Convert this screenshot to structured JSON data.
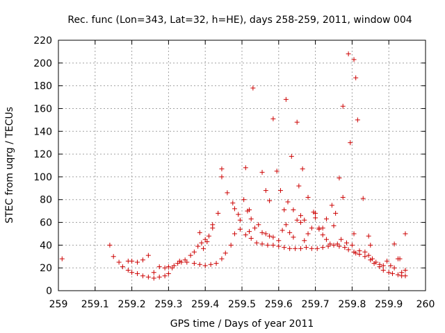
{
  "chart_data": {
    "type": "scatter",
    "title": "Rec. func (Lon=343, Lat=32, h=HE), days 258-259, 2011, window 004",
    "xlabel": "GPS time / Days of year 2011",
    "ylabel": "STEC from uqrg / TECUs",
    "xlim": [
      259,
      260
    ],
    "ylim": [
      0,
      220
    ],
    "xticks": [
      259,
      259.1,
      259.2,
      259.3,
      259.4,
      259.5,
      259.6,
      259.7,
      259.8,
      259.9,
      260
    ],
    "xtick_labels": [
      "259",
      "259.1",
      "259.2",
      "259.3",
      "259.4",
      "259.5",
      "259.6",
      "259.7",
      "259.8",
      "259.9",
      "260"
    ],
    "yticks": [
      0,
      20,
      40,
      60,
      80,
      100,
      120,
      140,
      160,
      180,
      200,
      220
    ],
    "ytick_labels": [
      "0",
      "20",
      "40",
      "60",
      "80",
      "100",
      "120",
      "140",
      "160",
      "180",
      "200",
      "220"
    ],
    "grid": true,
    "marker": "+",
    "color": "#cc0000",
    "points": [
      [
        259.01,
        28
      ],
      [
        259.14,
        40
      ],
      [
        259.15,
        30
      ],
      [
        259.165,
        25
      ],
      [
        259.175,
        21
      ],
      [
        259.19,
        18
      ],
      [
        259.2,
        16
      ],
      [
        259.215,
        15
      ],
      [
        259.23,
        13
      ],
      [
        259.245,
        12
      ],
      [
        259.26,
        11
      ],
      [
        259.275,
        12
      ],
      [
        259.29,
        13
      ],
      [
        259.3,
        15
      ],
      [
        259.31,
        20
      ],
      [
        259.325,
        24
      ],
      [
        259.335,
        25
      ],
      [
        259.35,
        25
      ],
      [
        259.37,
        24
      ],
      [
        259.385,
        23
      ],
      [
        259.4,
        22
      ],
      [
        259.415,
        23
      ],
      [
        259.43,
        24
      ],
      [
        259.445,
        28
      ],
      [
        259.455,
        33
      ],
      [
        259.47,
        40
      ],
      [
        259.48,
        50
      ],
      [
        259.495,
        54
      ],
      [
        259.51,
        49
      ],
      [
        259.525,
        46
      ],
      [
        259.54,
        42
      ],
      [
        259.555,
        41
      ],
      [
        259.57,
        40
      ],
      [
        259.585,
        40
      ],
      [
        259.6,
        39
      ],
      [
        259.615,
        38
      ],
      [
        259.63,
        37
      ],
      [
        259.645,
        37
      ],
      [
        259.66,
        37
      ],
      [
        259.675,
        38
      ],
      [
        259.69,
        37
      ],
      [
        259.705,
        37
      ],
      [
        259.72,
        38
      ],
      [
        259.735,
        39
      ],
      [
        259.75,
        40
      ],
      [
        259.765,
        39
      ],
      [
        259.78,
        38
      ],
      [
        259.79,
        36
      ],
      [
        259.805,
        34
      ],
      [
        259.82,
        32
      ],
      [
        259.835,
        30
      ],
      [
        259.85,
        27
      ],
      [
        259.86,
        24
      ],
      [
        259.875,
        21
      ],
      [
        259.885,
        18
      ],
      [
        259.9,
        16
      ],
      [
        259.91,
        15
      ],
      [
        259.925,
        14
      ],
      [
        259.935,
        13
      ],
      [
        259.945,
        13
      ],
      [
        259.19,
        26
      ],
      [
        259.2,
        26
      ],
      [
        259.215,
        25
      ],
      [
        259.23,
        27
      ],
      [
        259.245,
        31
      ],
      [
        259.26,
        16
      ],
      [
        259.275,
        21
      ],
      [
        259.29,
        20
      ],
      [
        259.3,
        21
      ],
      [
        259.315,
        22
      ],
      [
        259.33,
        26
      ],
      [
        259.345,
        27
      ],
      [
        259.36,
        31
      ],
      [
        259.37,
        34
      ],
      [
        259.38,
        39
      ],
      [
        259.39,
        42
      ],
      [
        259.4,
        45
      ],
      [
        259.41,
        48
      ],
      [
        259.42,
        55
      ],
      [
        259.435,
        68
      ],
      [
        259.445,
        100
      ],
      [
        259.445,
        107
      ],
      [
        259.46,
        86
      ],
      [
        259.475,
        77
      ],
      [
        259.48,
        72
      ],
      [
        259.49,
        67
      ],
      [
        259.495,
        62
      ],
      [
        259.505,
        80
      ],
      [
        259.515,
        70
      ],
      [
        259.52,
        71
      ],
      [
        259.525,
        63
      ],
      [
        259.535,
        55
      ],
      [
        259.545,
        58
      ],
      [
        259.555,
        51
      ],
      [
        259.565,
        50
      ],
      [
        259.575,
        48
      ],
      [
        259.585,
        47
      ],
      [
        259.6,
        44
      ],
      [
        259.61,
        53
      ],
      [
        259.62,
        58
      ],
      [
        259.63,
        51
      ],
      [
        259.64,
        47
      ],
      [
        259.65,
        62
      ],
      [
        259.66,
        60
      ],
      [
        259.67,
        44
      ],
      [
        259.68,
        50
      ],
      [
        259.69,
        55
      ],
      [
        259.7,
        64
      ],
      [
        259.71,
        54
      ],
      [
        259.72,
        49
      ],
      [
        259.73,
        45
      ],
      [
        259.74,
        41
      ],
      [
        259.75,
        57
      ],
      [
        259.76,
        41
      ],
      [
        259.77,
        45
      ],
      [
        259.785,
        42
      ],
      [
        259.8,
        40
      ],
      [
        259.81,
        33
      ],
      [
        259.82,
        35
      ],
      [
        259.835,
        34
      ],
      [
        259.845,
        31
      ],
      [
        259.855,
        28
      ],
      [
        259.865,
        25
      ],
      [
        259.875,
        23
      ],
      [
        259.885,
        22
      ],
      [
        259.895,
        26
      ],
      [
        259.905,
        22
      ],
      [
        259.915,
        20
      ],
      [
        259.925,
        28
      ],
      [
        259.935,
        16
      ],
      [
        259.945,
        18
      ],
      [
        259.385,
        51
      ],
      [
        259.395,
        37
      ],
      [
        259.405,
        43
      ],
      [
        259.42,
        58
      ],
      [
        259.51,
        108
      ],
      [
        259.52,
        52
      ],
      [
        259.53,
        178
      ],
      [
        259.555,
        104
      ],
      [
        259.565,
        88
      ],
      [
        259.575,
        79
      ],
      [
        259.585,
        151
      ],
      [
        259.595,
        105
      ],
      [
        259.605,
        88
      ],
      [
        259.615,
        71
      ],
      [
        259.62,
        168
      ],
      [
        259.625,
        78
      ],
      [
        259.635,
        118
      ],
      [
        259.64,
        71
      ],
      [
        259.65,
        148
      ],
      [
        259.655,
        92
      ],
      [
        259.66,
        66
      ],
      [
        259.665,
        107
      ],
      [
        259.67,
        62
      ],
      [
        259.68,
        82
      ],
      [
        259.695,
        69
      ],
      [
        259.7,
        68
      ],
      [
        259.71,
        55
      ],
      [
        259.72,
        55
      ],
      [
        259.73,
        63
      ],
      [
        259.745,
        75
      ],
      [
        259.755,
        68
      ],
      [
        259.765,
        99
      ],
      [
        259.775,
        82
      ],
      [
        259.775,
        162
      ],
      [
        259.79,
        208
      ],
      [
        259.795,
        130
      ],
      [
        259.805,
        203
      ],
      [
        259.81,
        187
      ],
      [
        259.815,
        150
      ],
      [
        259.83,
        81
      ],
      [
        259.845,
        48
      ],
      [
        259.85,
        40
      ],
      [
        259.805,
        50
      ],
      [
        259.915,
        41
      ],
      [
        259.93,
        28
      ],
      [
        259.945,
        50
      ]
    ]
  }
}
